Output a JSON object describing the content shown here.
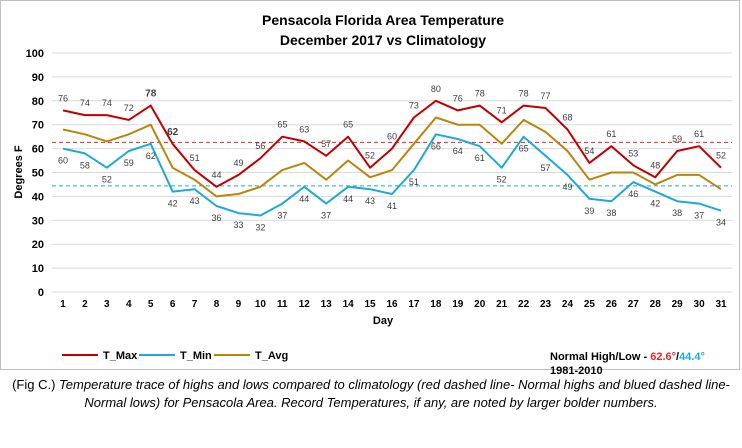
{
  "chart_data": {
    "type": "line",
    "title": "Pensacola Florida Area Temperature",
    "subtitle": "December 2017 vs Climatology",
    "xlabel": "Day",
    "ylabel": "Degrees F",
    "ylim": [
      0,
      100
    ],
    "yticks": [
      0,
      10,
      20,
      30,
      40,
      50,
      60,
      70,
      80,
      90,
      100
    ],
    "grid": true,
    "x": [
      1,
      2,
      3,
      4,
      5,
      6,
      7,
      8,
      9,
      10,
      11,
      12,
      13,
      14,
      15,
      16,
      17,
      18,
      19,
      20,
      21,
      22,
      23,
      24,
      25,
      26,
      27,
      28,
      29,
      30,
      31
    ],
    "series": [
      {
        "name": "T_Max",
        "color": "#c00000",
        "values": [
          76,
          74,
          74,
          72,
          78,
          62,
          51,
          44,
          49,
          56,
          65,
          63,
          57,
          65,
          52,
          60,
          73,
          80,
          76,
          78,
          71,
          78,
          77,
          68,
          54,
          61,
          53,
          48,
          59,
          61,
          52
        ],
        "bold_labels": [
          5,
          6
        ]
      },
      {
        "name": "T_Min",
        "color": "#1fa8d9",
        "values": [
          60,
          58,
          52,
          59,
          62,
          42,
          43,
          36,
          33,
          32,
          37,
          44,
          37,
          44,
          43,
          41,
          51,
          66,
          64,
          61,
          52,
          65,
          57,
          49,
          39,
          38,
          46,
          42,
          38,
          37,
          34
        ],
        "bold_labels": []
      },
      {
        "name": "T_Avg",
        "color": "#b8860b",
        "values": [
          68,
          66,
          63,
          66,
          70,
          52,
          47,
          40,
          41,
          44,
          51,
          54,
          47,
          55,
          48,
          51,
          62,
          73,
          70,
          70,
          62,
          72,
          67,
          59,
          47,
          50,
          50,
          45,
          49,
          49,
          43
        ],
        "labeled": false
      }
    ],
    "normals": {
      "high": 62.6,
      "low": 44.4,
      "high_color": "#e8252c",
      "low_color": "#1fa8d9"
    }
  },
  "normals_text": {
    "label": "Normal High/Low - ",
    "high": "62.6°",
    "sep": "/",
    "low": "44.4°",
    "period": "1981-2010"
  },
  "caption": {
    "lead": "(Fig C.) ",
    "text": "Temperature trace of highs and lows compared to climatology (red dashed line- Normal highs and blued dashed line- Normal lows) for Pensacola Area. Record Temperatures, if any, are noted by larger bolder numbers."
  }
}
